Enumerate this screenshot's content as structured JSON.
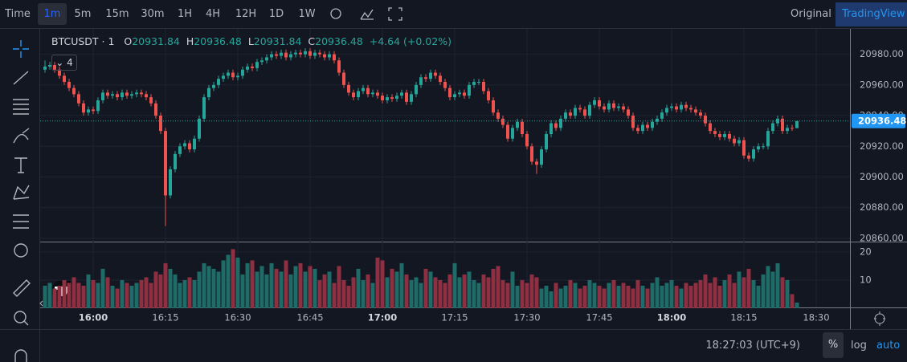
{
  "toolbar": {
    "items": [
      "Time",
      "1m",
      "5m",
      "15m",
      "30m",
      "1H",
      "4H",
      "12H",
      "1D",
      "1W"
    ],
    "right": [
      "Original",
      "TradingView"
    ]
  },
  "legend": {
    "symbol": "BTCUSDT · 1",
    "open_label": "O",
    "high_label": "H",
    "low_label": "L",
    "close_label": "C",
    "change": "+4.64 (+0.02%)",
    "studies_count": 4
  },
  "bottom": {
    "clock": "18:27:03 (UTC+9)",
    "buttons": [
      "%",
      "log",
      "auto"
    ]
  },
  "chart_data": {
    "type": "candlestick",
    "up_color": "#26a69a",
    "down_color": "#ef5350",
    "grid": true,
    "x": [
      "15:50",
      "15:51",
      "15:52",
      "15:53",
      "15:54",
      "15:55",
      "15:56",
      "15:57",
      "15:58",
      "15:59",
      "16:00",
      "16:01",
      "16:02",
      "16:03",
      "16:04",
      "16:05",
      "16:06",
      "16:07",
      "16:08",
      "16:09",
      "16:10",
      "16:11",
      "16:12",
      "16:13",
      "16:14",
      "16:15",
      "16:16",
      "16:17",
      "16:18",
      "16:19",
      "16:20",
      "16:21",
      "16:22",
      "16:23",
      "16:24",
      "16:25",
      "16:26",
      "16:27",
      "16:28",
      "16:29",
      "16:30",
      "16:31",
      "16:32",
      "16:33",
      "16:34",
      "16:35",
      "16:36",
      "16:37",
      "16:38",
      "16:39",
      "16:40",
      "16:41",
      "16:42",
      "16:43",
      "16:44",
      "16:45",
      "16:46",
      "16:47",
      "16:48",
      "16:49",
      "16:50",
      "16:51",
      "16:52",
      "16:53",
      "16:54",
      "16:55",
      "16:56",
      "16:57",
      "16:58",
      "16:59",
      "17:00",
      "17:01",
      "17:02",
      "17:03",
      "17:04",
      "17:05",
      "17:06",
      "17:07",
      "17:08",
      "17:09",
      "17:10",
      "17:11",
      "17:12",
      "17:13",
      "17:14",
      "17:15",
      "17:16",
      "17:17",
      "17:18",
      "17:19",
      "17:20",
      "17:21",
      "17:22",
      "17:23",
      "17:24",
      "17:25",
      "17:26",
      "17:27",
      "17:28",
      "17:29",
      "17:30",
      "17:31",
      "17:32",
      "17:33",
      "17:34",
      "17:35",
      "17:36",
      "17:37",
      "17:38",
      "17:39",
      "17:40",
      "17:41",
      "17:42",
      "17:43",
      "17:44",
      "17:45",
      "17:46",
      "17:47",
      "17:48",
      "17:49",
      "17:50",
      "17:51",
      "17:52",
      "17:53",
      "17:54",
      "17:55",
      "17:56",
      "17:57",
      "17:58",
      "17:59",
      "18:00",
      "18:01",
      "18:02",
      "18:03",
      "18:04",
      "18:05",
      "18:06",
      "18:07",
      "18:08",
      "18:09",
      "18:10",
      "18:11",
      "18:12",
      "18:13",
      "18:14",
      "18:15",
      "18:16",
      "18:17",
      "18:18",
      "18:19",
      "18:20",
      "18:21",
      "18:22",
      "18:23",
      "18:24",
      "18:25",
      "18:26"
    ],
    "open": [
      20970,
      20972,
      20973,
      20970,
      20966,
      20962,
      20958,
      20954,
      20948,
      20942,
      20944,
      20943,
      20950,
      20955,
      20953,
      20954,
      20952,
      20955,
      20953,
      20954,
      20955,
      20954,
      20952,
      20948,
      20940,
      20930,
      20888,
      20905,
      20915,
      20920,
      20922,
      20918,
      20925,
      20938,
      20952,
      20958,
      20960,
      20964,
      20966,
      20968,
      20965,
      20966,
      20970,
      20972,
      20971,
      20975,
      20976,
      20978,
      20980,
      20979,
      20981,
      20978,
      20980,
      20981,
      20980,
      20982,
      20979,
      20981,
      20980,
      20978,
      20980,
      20976,
      20968,
      20960,
      20955,
      20952,
      20956,
      20958,
      20954,
      20955,
      20953,
      20950,
      20952,
      20951,
      20953,
      20955,
      20949,
      20954,
      20960,
      20965,
      20964,
      20968,
      20966,
      20962,
      20958,
      20952,
      20954,
      20955,
      20953,
      20960,
      20962,
      20962,
      20956,
      20950,
      20942,
      20938,
      20934,
      20925,
      20932,
      20936,
      20928,
      20920,
      20910,
      20908,
      20918,
      20928,
      20935,
      20932,
      20938,
      20942,
      20940,
      20945,
      20944,
      20940,
      20947,
      20950,
      20946,
      20944,
      20948,
      20945,
      20946,
      20944,
      20940,
      20932,
      20930,
      20934,
      20932,
      20936,
      20938,
      20942,
      20945,
      20946,
      20944,
      20947,
      20945,
      20944,
      20942,
      20940,
      20935,
      20930,
      20928,
      20926,
      20928,
      20925,
      20922,
      20924,
      20914,
      20912,
      20918,
      20920,
      20920,
      20930,
      20935,
      20938,
      20930,
      20932,
      20931.84
    ],
    "high": [
      20976,
      20975,
      20975,
      20972,
      20968,
      20964,
      20960,
      20956,
      20950,
      20946,
      20946,
      20952,
      20957,
      20957,
      20956,
      20956,
      20957,
      20957,
      20956,
      20957,
      20957,
      20956,
      20954,
      20950,
      20942,
      20932,
      20907,
      20917,
      20922,
      20924,
      20924,
      20927,
      20940,
      20954,
      20960,
      20962,
      20966,
      20968,
      20970,
      20970,
      20968,
      20972,
      20974,
      20974,
      20977,
      20978,
      20980,
      20982,
      20982,
      20983,
      20983,
      20982,
      20983,
      20983,
      20984,
      20984,
      20983,
      20983,
      20982,
      20982,
      20982,
      20978,
      20970,
      20962,
      20957,
      20958,
      20960,
      20960,
      20957,
      20957,
      20955,
      20954,
      20954,
      20955,
      20957,
      20957,
      20956,
      20962,
      20967,
      20967,
      20970,
      20970,
      20968,
      20964,
      20960,
      20956,
      20957,
      20957,
      20962,
      20964,
      20964,
      20964,
      20958,
      20952,
      20944,
      20940,
      20936,
      20934,
      20938,
      20938,
      20930,
      20922,
      20912,
      20920,
      20930,
      20937,
      20937,
      20940,
      20944,
      20944,
      20947,
      20947,
      20946,
      20949,
      20952,
      20952,
      20948,
      20950,
      20950,
      20948,
      20948,
      20946,
      20942,
      20934,
      20936,
      20936,
      20938,
      20940,
      20944,
      20947,
      20948,
      20948,
      20949,
      20949,
      20947,
      20946,
      20944,
      20942,
      20937,
      20932,
      20930,
      20930,
      20930,
      20927,
      20926,
      20926,
      20916,
      20920,
      20922,
      20922,
      20932,
      20937,
      20940,
      20940,
      20934,
      20934,
      20936.48
    ],
    "low": [
      20968,
      20970,
      20968,
      20964,
      20960,
      20956,
      20952,
      20946,
      20940,
      20940,
      20941,
      20941,
      20948,
      20951,
      20951,
      20950,
      20950,
      20951,
      20951,
      20952,
      20952,
      20950,
      20946,
      20938,
      20928,
      20868,
      20886,
      20903,
      20913,
      20918,
      20916,
      20916,
      20923,
      20936,
      20950,
      20956,
      20958,
      20962,
      20964,
      20963,
      20963,
      20964,
      20968,
      20969,
      20969,
      20973,
      20974,
      20976,
      20977,
      20977,
      20976,
      20976,
      20978,
      20978,
      20978,
      20977,
      20977,
      20978,
      20976,
      20976,
      20974,
      20966,
      20958,
      20953,
      20950,
      20950,
      20954,
      20952,
      20952,
      20951,
      20948,
      20948,
      20949,
      20949,
      20951,
      20947,
      20947,
      20952,
      20958,
      20962,
      20962,
      20964,
      20960,
      20956,
      20950,
      20950,
      20952,
      20951,
      20951,
      20958,
      20960,
      20954,
      20948,
      20940,
      20936,
      20932,
      20923,
      20923,
      20930,
      20926,
      20918,
      20908,
      20902,
      20906,
      20916,
      20926,
      20930,
      20930,
      20936,
      20938,
      20938,
      20942,
      20938,
      20938,
      20945,
      20944,
      20942,
      20942,
      20943,
      20943,
      20942,
      20938,
      20930,
      20928,
      20928,
      20930,
      20930,
      20934,
      20936,
      20940,
      20943,
      20942,
      20942,
      20943,
      20942,
      20940,
      20938,
      20933,
      20928,
      20926,
      20924,
      20924,
      20923,
      20920,
      20920,
      20912,
      20910,
      20910,
      20916,
      20918,
      20918,
      20928,
      20933,
      20928,
      20928,
      20930,
      20931.84
    ],
    "close": [
      20972,
      20973,
      20970,
      20966,
      20962,
      20958,
      20954,
      20948,
      20942,
      20944,
      20943,
      20950,
      20955,
      20953,
      20954,
      20952,
      20955,
      20953,
      20954,
      20955,
      20954,
      20952,
      20948,
      20940,
      20930,
      20888,
      20905,
      20915,
      20920,
      20922,
      20918,
      20925,
      20938,
      20952,
      20958,
      20960,
      20964,
      20966,
      20968,
      20965,
      20966,
      20970,
      20972,
      20971,
      20975,
      20976,
      20978,
      20980,
      20979,
      20981,
      20978,
      20980,
      20981,
      20980,
      20982,
      20979,
      20981,
      20980,
      20978,
      20980,
      20976,
      20968,
      20960,
      20955,
      20952,
      20956,
      20958,
      20954,
      20955,
      20953,
      20950,
      20952,
      20951,
      20953,
      20955,
      20949,
      20954,
      20960,
      20965,
      20964,
      20968,
      20966,
      20962,
      20958,
      20952,
      20954,
      20955,
      20953,
      20960,
      20962,
      20962,
      20956,
      20950,
      20942,
      20938,
      20934,
      20925,
      20932,
      20936,
      20928,
      20920,
      20910,
      20908,
      20918,
      20928,
      20935,
      20932,
      20938,
      20942,
      20940,
      20945,
      20944,
      20940,
      20947,
      20950,
      20946,
      20944,
      20948,
      20945,
      20946,
      20944,
      20940,
      20932,
      20930,
      20934,
      20932,
      20936,
      20938,
      20942,
      20945,
      20946,
      20944,
      20947,
      20945,
      20944,
      20942,
      20940,
      20935,
      20930,
      20928,
      20926,
      20928,
      20925,
      20922,
      20924,
      20914,
      20912,
      20918,
      20920,
      20920,
      20930,
      20935,
      20938,
      20930,
      20932,
      20931.84,
      20936.48
    ],
    "xlim": [
      "15:49",
      "18:37"
    ],
    "xticks": [
      "16:00",
      "16:15",
      "16:30",
      "16:45",
      "17:00",
      "17:15",
      "17:30",
      "17:45",
      "18:00",
      "18:15",
      "18:30"
    ],
    "ylim": [
      20858.4,
      20995.5
    ],
    "yticks": [
      {
        "value": 20860,
        "label": "20860.00"
      },
      {
        "value": 20880,
        "label": "20880.00"
      },
      {
        "value": 20900,
        "label": "20900.00"
      },
      {
        "value": 20920,
        "label": "20920.00"
      },
      {
        "value": 20940,
        "label": "20940.00"
      },
      {
        "value": 20960,
        "label": "20960.00"
      },
      {
        "value": 20980,
        "label": "20980.00"
      }
    ],
    "volume": {
      "values": [
        8,
        9,
        7,
        8,
        10,
        9,
        11,
        9,
        8,
        12,
        10,
        9,
        14,
        11,
        8,
        7,
        10,
        9,
        8,
        9,
        10,
        11,
        9,
        13,
        12,
        16,
        14,
        12,
        9,
        10,
        11,
        10,
        13,
        16,
        15,
        14,
        13,
        17,
        19,
        21,
        18,
        12,
        16,
        17,
        13,
        15,
        12,
        16,
        14,
        13,
        17,
        12,
        15,
        16,
        13,
        15,
        14,
        10,
        12,
        13,
        9,
        15,
        10,
        8,
        11,
        14,
        10,
        12,
        9,
        18,
        17,
        11,
        14,
        13,
        16,
        12,
        10,
        11,
        9,
        14,
        13,
        11,
        10,
        9,
        12,
        16,
        11,
        12,
        13,
        10,
        9,
        12,
        11,
        14,
        15,
        10,
        9,
        13,
        8,
        10,
        9,
        12,
        11,
        7,
        8,
        6,
        9,
        7,
        8,
        10,
        9,
        7,
        8,
        10,
        9,
        8,
        7,
        9,
        10,
        8,
        9,
        8,
        7,
        10,
        8,
        7,
        9,
        11,
        8,
        9,
        10,
        8,
        7,
        9,
        8,
        9,
        10,
        12,
        9,
        11,
        8,
        10,
        12,
        9,
        13,
        11,
        14,
        10,
        8,
        12,
        15,
        13,
        16,
        11,
        10,
        5,
        2
      ],
      "up_color": "#1e6b67",
      "down_color": "#8f2f42",
      "ylim": [
        0,
        23.4
      ],
      "yticks": [
        10,
        20
      ]
    }
  }
}
